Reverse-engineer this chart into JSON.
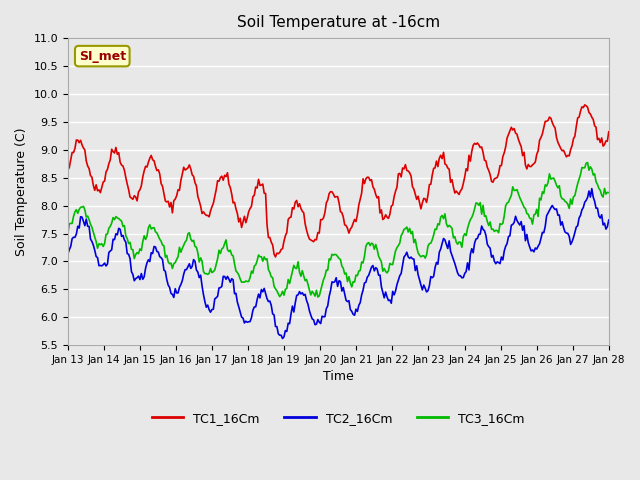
{
  "title": "Soil Temperature at -16cm",
  "xlabel": "Time",
  "ylabel": "Soil Temperature (C)",
  "ylim": [
    5.5,
    11.0
  ],
  "background_color": "#e8e8e8",
  "plot_bg_color": "#e8e8e8",
  "grid_color": "#ffffff",
  "annotation_label": "SI_met",
  "annotation_bg": "#ffffcc",
  "annotation_border": "#999900",
  "annotation_text_color": "#990000",
  "series": {
    "TC1_16Cm": {
      "color": "#dd0000",
      "linewidth": 1.2
    },
    "TC2_16Cm": {
      "color": "#0000dd",
      "linewidth": 1.2
    },
    "TC3_16Cm": {
      "color": "#00bb00",
      "linewidth": 1.2
    }
  },
  "xtick_labels": [
    "Jan 13",
    "Jan 14",
    "Jan 15",
    "Jan 16",
    "Jan 17",
    "Jan 18",
    "Jan 19",
    "Jan 20",
    "Jan 21",
    "Jan 22",
    "Jan 23",
    "Jan 24",
    "Jan 25",
    "Jan 26",
    "Jan 27",
    "Jan 28"
  ],
  "legend_labels": [
    "TC1_16Cm",
    "TC2_16Cm",
    "TC3_16Cm"
  ],
  "legend_colors": [
    "#dd0000",
    "#0000dd",
    "#00bb00"
  ]
}
